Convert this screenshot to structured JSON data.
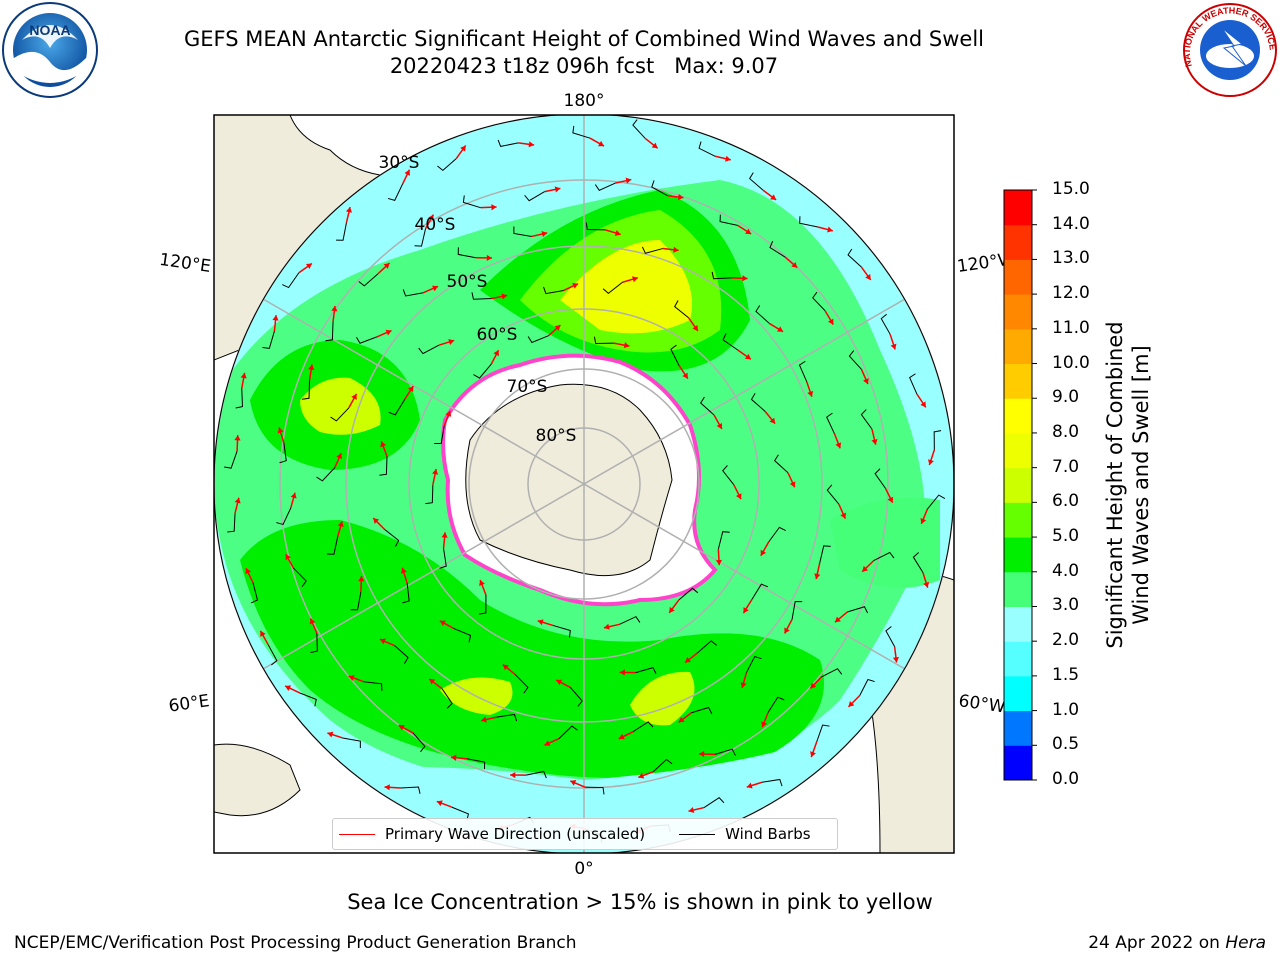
{
  "header": {
    "title_line1": "GEFS MEAN Antarctic Significant Height of Combined Wind Waves and Swell",
    "title_line2": "20220423 t18z 096h fcst   Max: 9.07"
  },
  "logos": {
    "left": "NOAA",
    "right_text": "NATIONAL WEATHER SERVICE"
  },
  "map": {
    "longitude_labels": [
      "180°",
      "120°E",
      "120°W",
      "60°E",
      "60°W",
      "0°"
    ],
    "latitude_labels": [
      "30°S",
      "40°S",
      "50°S",
      "60°S",
      "70°S",
      "80°S"
    ]
  },
  "legend": {
    "primary_label": "Primary Wave Direction (unscaled)",
    "wind_label": "Wind Barbs",
    "primary_color": "#ff0000",
    "wind_color": "#000000"
  },
  "colorbar": {
    "title_line1": "Significant Height of Combined",
    "title_line2": "Wind Waves and Swell [m]",
    "ticks": [
      "15.0",
      "14.0",
      "13.0",
      "12.0",
      "11.0",
      "10.0",
      "9.0",
      "8.0",
      "7.0",
      "6.0",
      "5.0",
      "4.0",
      "3.0",
      "2.0",
      "1.5",
      "1.0",
      "0.5",
      "0.0"
    ],
    "colors": [
      "#0000ff",
      "#0077ff",
      "#00ffff",
      "#55ffff",
      "#99ffff",
      "#44ff77",
      "#00ee00",
      "#66ff00",
      "#ccff00",
      "#eeff00",
      "#ffff00",
      "#ffcc00",
      "#ffaa00",
      "#ff8800",
      "#ff6600",
      "#ff3300",
      "#ff0000"
    ]
  },
  "notes": {
    "ice": "Sea Ice Concentration > 15% is shown in pink to yellow"
  },
  "footer": {
    "left": "NCEP/EMC/Verification Post Processing Product Generation Branch",
    "date": "24 Apr 2022 on ",
    "machine": "Hera"
  }
}
